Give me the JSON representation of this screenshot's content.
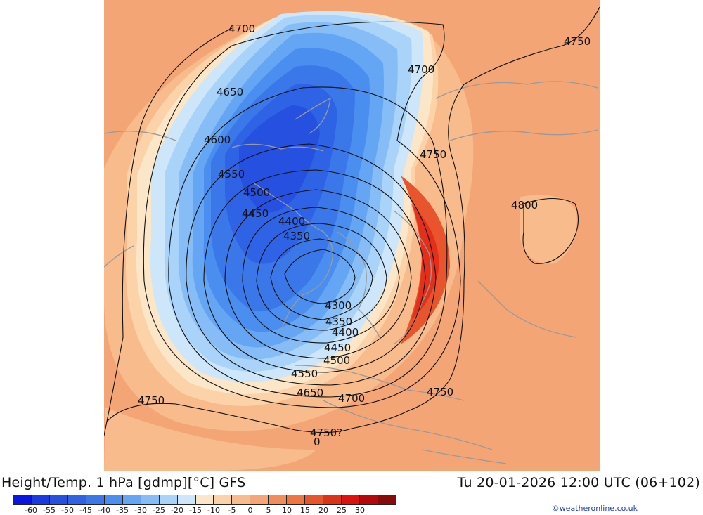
{
  "footer": {
    "title": "Height/Temp. 1 hPa [gdmp][°C] GFS",
    "valid_time": "Tu 20-01-2026 12:00 UTC (06+102)",
    "credit": "©weatheronline.co.uk"
  },
  "legend": {
    "tick_labels": [
      "-60",
      "-55",
      "-50",
      "-45",
      "-40",
      "-35",
      "-30",
      "-25",
      "-20",
      "-15",
      "-10",
      "-5",
      "0",
      "5",
      "10",
      "15",
      "20",
      "25",
      "30"
    ],
    "colors": [
      "#0a14e6",
      "#1a3be0",
      "#2550e0",
      "#2f63e6",
      "#3a78ea",
      "#4a8ef0",
      "#64a6f4",
      "#86bdf6",
      "#a9d3f8",
      "#cde6f9",
      "#fbe6c8",
      "#fcd2a8",
      "#f8bb8c",
      "#f5a576",
      "#f28d5a",
      "#ee7440",
      "#e8552c",
      "#dc3218",
      "#e0100c",
      "#b8070a",
      "#8a0a08"
    ]
  },
  "contour_labels": [
    "4700",
    "4700",
    "4750",
    "4650",
    "4600",
    "4750",
    "4550",
    "4500",
    "4800",
    "4450",
    "4400",
    "4350",
    "4300",
    "4350",
    "4400",
    "4450",
    "4500",
    "4550",
    "4650",
    "4700",
    "4750",
    "4750",
    "4750?",
    "0"
  ],
  "colors": {
    "warm_background": "#f4a576",
    "cold_core": "#2450dd",
    "warm_max": "#e8451f",
    "contour_line": "#111111",
    "coastline": "#9a9a9a"
  }
}
